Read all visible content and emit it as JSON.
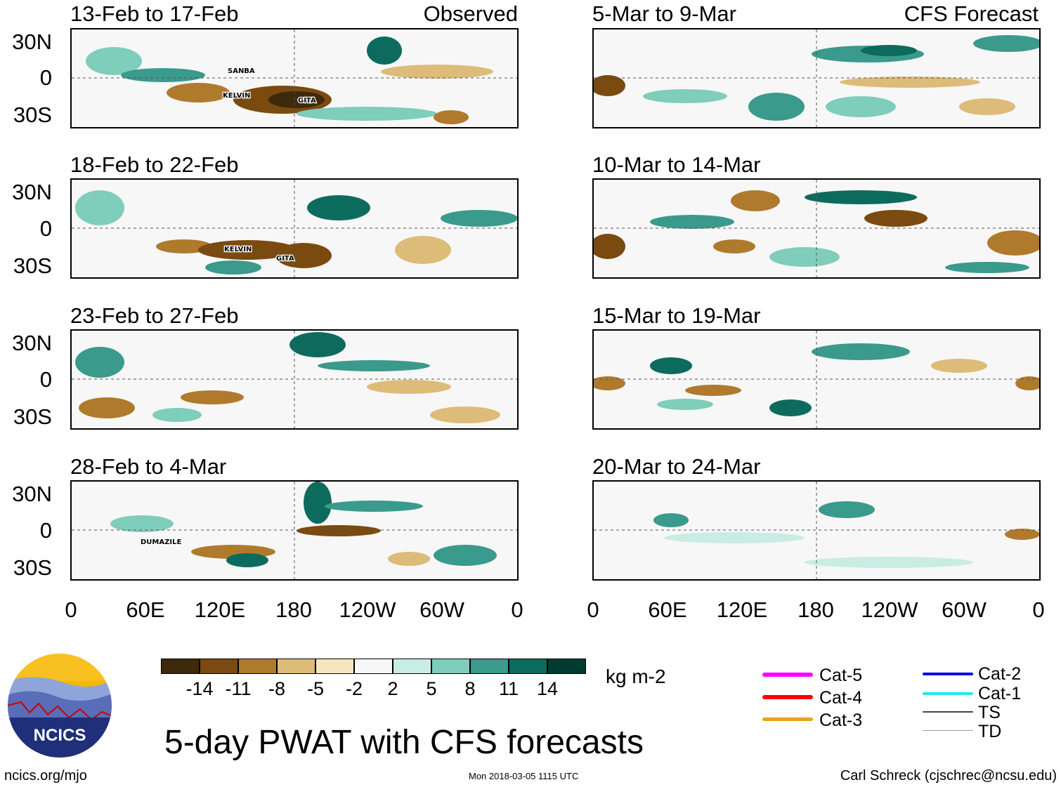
{
  "panels": [
    {
      "title": "13-Feb to 17-Feb",
      "tag": "Observed",
      "storms": [
        "SANBA",
        "KELVIN",
        "GITA"
      ]
    },
    {
      "title": "18-Feb to 22-Feb",
      "tag": "",
      "storms": [
        "KELVIN",
        "GITA"
      ]
    },
    {
      "title": "23-Feb to 27-Feb",
      "tag": "",
      "storms": []
    },
    {
      "title": "28-Feb to 4-Mar",
      "tag": "",
      "storms": [
        "DUMAZILE"
      ]
    },
    {
      "title": "5-Mar to 9-Mar",
      "tag": "CFS Forecast",
      "storms": []
    },
    {
      "title": "10-Mar to 14-Mar",
      "tag": "",
      "storms": []
    },
    {
      "title": "15-Mar to 19-Mar",
      "tag": "",
      "storms": []
    },
    {
      "title": "20-Mar to 24-Mar",
      "tag": "",
      "storms": []
    }
  ],
  "lat_labels": [
    "30N",
    "0",
    "30S"
  ],
  "lon_labels": [
    "0",
    "60E",
    "120E",
    "180",
    "120W",
    "60W",
    "0"
  ],
  "colorbar": {
    "colors": [
      "#3d2a0c",
      "#7a4a10",
      "#b07a2c",
      "#dcbc78",
      "#f6e6c0",
      "#f7f7f7",
      "#c9ece3",
      "#7fcdbb",
      "#3a9a8c",
      "#0d6b5e",
      "#003c30"
    ],
    "labels": [
      "-14",
      "-11",
      "-8",
      "-5",
      "-2",
      "2",
      "5",
      "8",
      "11",
      "14"
    ],
    "units": "kg m-2"
  },
  "title": "5-day PWAT with CFS forecasts",
  "legend": [
    {
      "label": "Cat-5",
      "color": "#ff00ff"
    },
    {
      "label": "Cat-4",
      "color": "#ff0000"
    },
    {
      "label": "Cat-3",
      "color": "#e8a21a"
    },
    {
      "label": "Cat-2",
      "color": "#0000e0"
    },
    {
      "label": "Cat-1",
      "color": "#22e8e8"
    },
    {
      "label": "TS",
      "color": "#444444"
    },
    {
      "label": "TD",
      "color": "#9a9a9a"
    }
  ],
  "logo_text": "NCICS",
  "footer": {
    "left": "ncics.org/mjo",
    "center": "Mon 2018-03-05 1115 UTC",
    "right": "Carl Schreck (cjschrec@ncsu.edu)"
  }
}
